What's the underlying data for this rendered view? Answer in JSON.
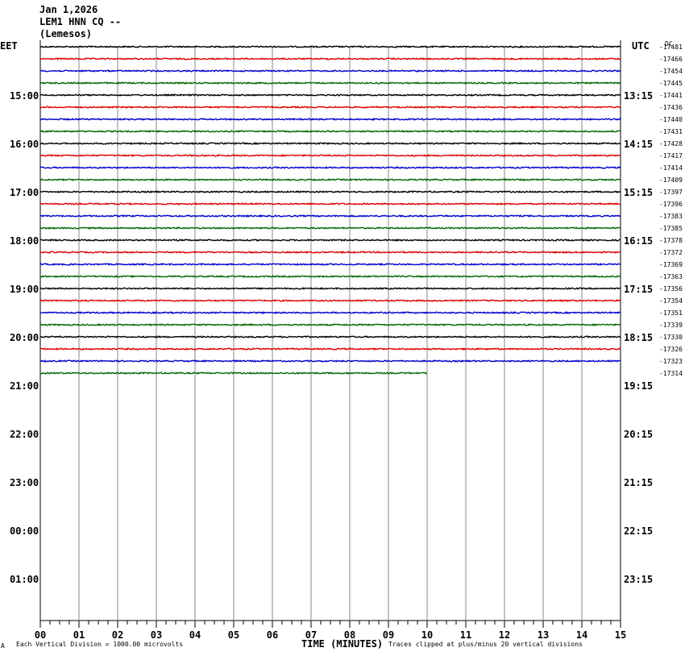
{
  "header": {
    "date": "Jan 1,2026",
    "station": "LEM1 HNN CQ --",
    "location": "(Lemesos)"
  },
  "left_timezone": "EET",
  "right_timezone": "UTC",
  "dc_label": "DC",
  "footer": {
    "scale_note": "Each Vertical Division = 1000.00 microvolts",
    "xlabel": "TIME (MINUTES)",
    "clip_note": "Traces clipped at plus/minus 20 vertical divisions",
    "corner_mark": "A"
  },
  "chart_data": {
    "type": "line",
    "title": "",
    "xlabel": "TIME (MINUTES)",
    "ylabel": "",
    "xlim": [
      0,
      15
    ],
    "x_ticks": [
      "00",
      "01",
      "02",
      "03",
      "04",
      "05",
      "06",
      "07",
      "08",
      "09",
      "10",
      "11",
      "12",
      "13",
      "14",
      "15"
    ],
    "grid": true,
    "left_time_labels": [
      "15:00",
      "16:00",
      "17:00",
      "18:00",
      "19:00",
      "20:00",
      "21:00",
      "22:00",
      "23:00",
      "00:00",
      "01:00"
    ],
    "right_time_labels": [
      "13:15",
      "14:15",
      "15:15",
      "16:15",
      "17:15",
      "18:15",
      "19:15",
      "20:15",
      "21:15",
      "22:15",
      "23:15"
    ],
    "trace_colors": [
      "#000000",
      "#dd0000",
      "#0000cc",
      "#006600"
    ],
    "dc_offsets": [
      -17481,
      -17466,
      -17454,
      -17445,
      -17441,
      -17436,
      -17440,
      -17431,
      -17428,
      -17417,
      -17414,
      -17409,
      -17397,
      -17396,
      -17383,
      -17385,
      -17378,
      -17372,
      -17369,
      -17363,
      -17356,
      -17354,
      -17351,
      -17339,
      -17330,
      -17326,
      -17323,
      -17314
    ],
    "last_trace_end_minute": 10
  }
}
